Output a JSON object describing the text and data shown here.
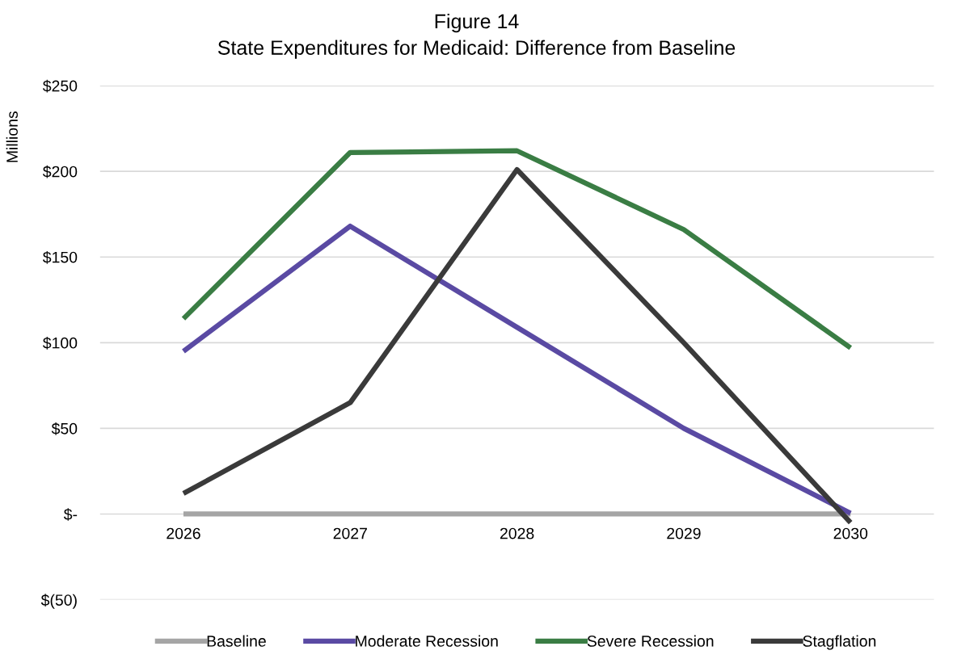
{
  "chart_data": {
    "type": "line",
    "title": "Figure 14",
    "subtitle": "State Expenditures for Medicaid: Difference from Baseline",
    "ylabel": "Millions",
    "categories": [
      "2026",
      "2027",
      "2028",
      "2029",
      "2030"
    ],
    "series": [
      {
        "name": "Baseline",
        "color": "#a5a5a5",
        "values": [
          0,
          0,
          0,
          0,
          0
        ]
      },
      {
        "name": "Moderate Recession",
        "color": "#5a4aa3",
        "values": [
          95,
          168,
          109,
          50,
          0.5
        ]
      },
      {
        "name": "Severe Recession",
        "color": "#3a7d44",
        "values": [
          114,
          211,
          212,
          166,
          97
        ]
      },
      {
        "name": "Stagflation",
        "color": "#3a3a3a",
        "values": [
          12,
          65,
          201,
          100,
          -5
        ]
      }
    ],
    "ylim": [
      -50,
      250
    ],
    "yticks": [
      {
        "value": -50,
        "label": "$(50)"
      },
      {
        "value": 0,
        "label": "$-"
      },
      {
        "value": 50,
        "label": "$50"
      },
      {
        "value": 100,
        "label": "$100"
      },
      {
        "value": 150,
        "label": "$150"
      },
      {
        "value": 200,
        "label": "$200"
      },
      {
        "value": 250,
        "label": "$250"
      }
    ],
    "grid": "y",
    "legend": "bottom",
    "marker": "none",
    "line_style": "solid"
  }
}
